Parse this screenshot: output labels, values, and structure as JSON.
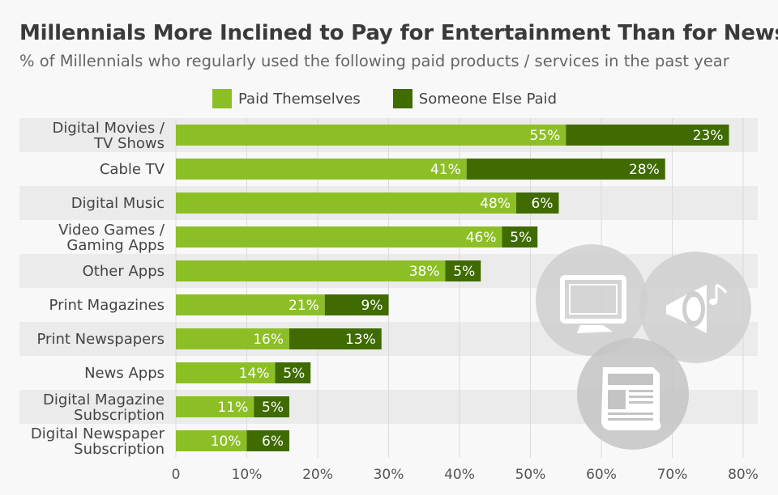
{
  "chart_data": {
    "type": "bar",
    "orientation": "horizontal",
    "stacked": true,
    "title": "Millennials More Inclined to Pay for Entertainment Than for News",
    "subtitle": "% of Millennials who regularly used the following paid products / services in the past year",
    "categories": [
      [
        "Digital Movies /",
        "TV Shows"
      ],
      [
        "Cable TV"
      ],
      [
        "Digital Music"
      ],
      [
        "Video Games /",
        "Gaming Apps"
      ],
      [
        "Other Apps"
      ],
      [
        "Print Magazines"
      ],
      [
        "Print Newspapers"
      ],
      [
        "News Apps"
      ],
      [
        "Digital Magazine",
        "Subscription"
      ],
      [
        "Digital Newspaper",
        "Subscription"
      ]
    ],
    "series": [
      {
        "name": "Paid Themselves",
        "color": "#8cbf26",
        "values": [
          55,
          41,
          48,
          46,
          38,
          21,
          16,
          14,
          11,
          10
        ]
      },
      {
        "name": "Someone Else Paid",
        "color": "#3f6b00",
        "values": [
          23,
          28,
          6,
          5,
          5,
          9,
          13,
          5,
          5,
          6
        ]
      }
    ],
    "value_suffix": "%",
    "xlim": [
      0,
      80
    ],
    "xticks": [
      "0",
      "10%",
      "20%",
      "30%",
      "40%",
      "50%",
      "60%",
      "70%",
      "80%"
    ],
    "legend_position": "top",
    "grid": "vertical",
    "decorative_icons": [
      "tv-icon",
      "speaker-music-icon",
      "newspaper-icon"
    ]
  }
}
